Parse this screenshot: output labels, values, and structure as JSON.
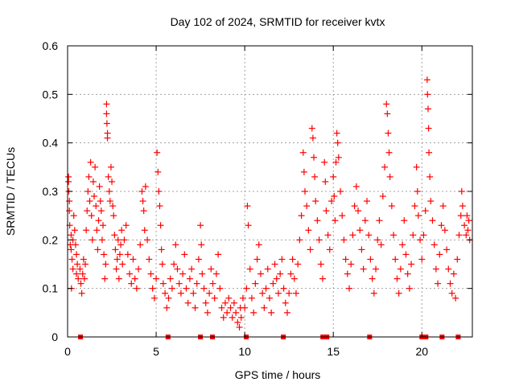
{
  "chart_data": {
    "type": "scatter",
    "title": "Day 102 of 2024, SRMTID for receiver kvtx",
    "xlabel": "GPS time / hours",
    "ylabel": "SRMTID / TECUs",
    "xlim": [
      0,
      22.85
    ],
    "ylim": [
      0,
      0.6
    ],
    "xticks": [
      0,
      5,
      10,
      15,
      20
    ],
    "xtick_labels": [
      "0",
      "5",
      "10",
      "15",
      "20"
    ],
    "yticks": [
      0,
      0.1,
      0.2,
      0.3,
      0.4,
      0.5,
      0.6
    ],
    "ytick_labels": [
      "0",
      "0.1",
      "0.2",
      "0.3",
      "0.4",
      "0.5",
      "0.6"
    ],
    "grid": true,
    "legend": "none",
    "marker": "plus",
    "color": "#ff0000",
    "series": [
      {
        "name": "SRMTID",
        "points": [
          [
            0.05,
            0.33
          ],
          [
            0.05,
            0.32
          ],
          [
            0.07,
            0.3
          ],
          [
            0.1,
            0.28
          ],
          [
            0.1,
            0.26
          ],
          [
            0.12,
            0.23
          ],
          [
            0.15,
            0.19
          ],
          [
            0.2,
            0.21
          ],
          [
            0.2,
            0.18
          ],
          [
            0.22,
            0.1
          ],
          [
            0.25,
            0.16
          ],
          [
            0.3,
            0.14
          ],
          [
            0.3,
            0.2
          ],
          [
            0.35,
            0.25
          ],
          [
            0.4,
            0.22
          ],
          [
            0.45,
            0.19
          ],
          [
            0.5,
            0.17
          ],
          [
            0.5,
            0.13
          ],
          [
            0.55,
            0.15
          ],
          [
            0.6,
            0.12
          ],
          [
            0.7,
            0.14
          ],
          [
            0.75,
            0.11
          ],
          [
            0.8,
            0.09
          ],
          [
            0.85,
            0.13
          ],
          [
            0.9,
            0.16
          ],
          [
            0.95,
            0.12
          ],
          [
            1.0,
            0.15
          ],
          [
            1.05,
            0.22
          ],
          [
            1.1,
            0.26
          ],
          [
            1.15,
            0.3
          ],
          [
            1.2,
            0.33
          ],
          [
            1.25,
            0.28
          ],
          [
            1.3,
            0.36
          ],
          [
            1.35,
            0.25
          ],
          [
            1.4,
            0.2
          ],
          [
            1.45,
            0.32
          ],
          [
            1.5,
            0.29
          ],
          [
            1.55,
            0.35
          ],
          [
            1.6,
            0.27
          ],
          [
            1.65,
            0.22
          ],
          [
            1.7,
            0.18
          ],
          [
            1.75,
            0.24
          ],
          [
            1.8,
            0.31
          ],
          [
            1.85,
            0.28
          ],
          [
            1.9,
            0.26
          ],
          [
            1.95,
            0.2
          ],
          [
            2.0,
            0.23
          ],
          [
            2.05,
            0.17
          ],
          [
            2.1,
            0.12
          ],
          [
            2.15,
            0.15
          ],
          [
            2.2,
            0.48
          ],
          [
            2.2,
            0.46
          ],
          [
            2.22,
            0.44
          ],
          [
            2.25,
            0.42
          ],
          [
            2.25,
            0.41
          ],
          [
            2.3,
            0.33
          ],
          [
            2.35,
            0.3
          ],
          [
            2.4,
            0.28
          ],
          [
            2.45,
            0.35
          ],
          [
            2.5,
            0.32
          ],
          [
            2.55,
            0.27
          ],
          [
            2.6,
            0.25
          ],
          [
            2.65,
            0.21
          ],
          [
            2.7,
            0.18
          ],
          [
            2.75,
            0.14
          ],
          [
            2.8,
            0.16
          ],
          [
            2.85,
            0.2
          ],
          [
            2.9,
            0.12
          ],
          [
            2.95,
            0.17
          ],
          [
            3.0,
            0.19
          ],
          [
            3.05,
            0.22
          ],
          [
            3.1,
            0.15
          ],
          [
            3.2,
            0.2
          ],
          [
            3.3,
            0.23
          ],
          [
            3.4,
            0.17
          ],
          [
            3.5,
            0.13
          ],
          [
            3.6,
            0.11
          ],
          [
            3.7,
            0.16
          ],
          [
            3.8,
            0.12
          ],
          [
            3.9,
            0.1
          ],
          [
            4.0,
            0.14
          ],
          [
            4.1,
            0.19
          ],
          [
            4.2,
            0.3
          ],
          [
            4.25,
            0.28
          ],
          [
            4.3,
            0.26
          ],
          [
            4.35,
            0.22
          ],
          [
            4.4,
            0.31
          ],
          [
            4.5,
            0.2
          ],
          [
            4.6,
            0.16
          ],
          [
            4.7,
            0.13
          ],
          [
            4.8,
            0.1
          ],
          [
            4.9,
            0.08
          ],
          [
            5.0,
            0.12
          ],
          [
            5.05,
            0.38
          ],
          [
            5.1,
            0.34
          ],
          [
            5.15,
            0.3
          ],
          [
            5.2,
            0.27
          ],
          [
            5.25,
            0.23
          ],
          [
            5.3,
            0.18
          ],
          [
            5.35,
            0.15
          ],
          [
            5.4,
            0.11
          ],
          [
            5.5,
            0.09
          ],
          [
            5.6,
            0.06
          ],
          [
            5.7,
            0.08
          ],
          [
            5.8,
            0.12
          ],
          [
            5.9,
            0.1
          ],
          [
            6.0,
            0.15
          ],
          [
            6.1,
            0.19
          ],
          [
            6.2,
            0.14
          ],
          [
            6.3,
            0.11
          ],
          [
            6.4,
            0.09
          ],
          [
            6.5,
            0.13
          ],
          [
            6.6,
            0.17
          ],
          [
            6.7,
            0.1
          ],
          [
            6.8,
            0.07
          ],
          [
            6.9,
            0.12
          ],
          [
            7.0,
            0.14
          ],
          [
            7.1,
            0.09
          ],
          [
            7.2,
            0.06
          ],
          [
            7.3,
            0.11
          ],
          [
            7.4,
            0.16
          ],
          [
            7.5,
            0.23
          ],
          [
            7.55,
            0.19
          ],
          [
            7.6,
            0.13
          ],
          [
            7.7,
            0.1
          ],
          [
            7.8,
            0.07
          ],
          [
            7.9,
            0.05
          ],
          [
            8.0,
            0.09
          ],
          [
            8.1,
            0.14
          ],
          [
            8.2,
            0.11
          ],
          [
            8.3,
            0.08
          ],
          [
            8.4,
            0.13
          ],
          [
            8.5,
            0.17
          ],
          [
            8.6,
            0.1
          ],
          [
            8.7,
            0.06
          ],
          [
            8.8,
            0.04
          ],
          [
            8.9,
            0.07
          ],
          [
            9.0,
            0.05
          ],
          [
            9.1,
            0.08
          ],
          [
            9.2,
            0.06
          ],
          [
            9.3,
            0.04
          ],
          [
            9.4,
            0.07
          ],
          [
            9.5,
            0.05
          ],
          [
            9.6,
            0.03
          ],
          [
            9.7,
            0.02
          ],
          [
            9.75,
            0.06
          ],
          [
            9.8,
            0.04
          ],
          [
            9.9,
            0.08
          ],
          [
            10.0,
            0.06
          ],
          [
            10.1,
            0.1
          ],
          [
            10.15,
            0.27
          ],
          [
            10.2,
            0.23
          ],
          [
            10.3,
            0.14
          ],
          [
            10.4,
            0.08
          ],
          [
            10.5,
            0.05
          ],
          [
            10.6,
            0.11
          ],
          [
            10.7,
            0.16
          ],
          [
            10.8,
            0.19
          ],
          [
            10.9,
            0.13
          ],
          [
            11.0,
            0.09
          ],
          [
            11.1,
            0.06
          ],
          [
            11.2,
            0.1
          ],
          [
            11.3,
            0.14
          ],
          [
            11.4,
            0.08
          ],
          [
            11.5,
            0.05
          ],
          [
            11.6,
            0.11
          ],
          [
            11.7,
            0.15
          ],
          [
            11.8,
            0.12
          ],
          [
            11.9,
            0.09
          ],
          [
            12.0,
            0.13
          ],
          [
            12.1,
            0.16
          ],
          [
            12.2,
            0.1
          ],
          [
            12.3,
            0.07
          ],
          [
            12.4,
            0.05
          ],
          [
            12.5,
            0.09
          ],
          [
            12.6,
            0.13
          ],
          [
            12.7,
            0.16
          ],
          [
            12.8,
            0.12
          ],
          [
            12.9,
            0.09
          ],
          [
            13.0,
            0.15
          ],
          [
            13.1,
            0.2
          ],
          [
            13.2,
            0.25
          ],
          [
            13.3,
            0.38
          ],
          [
            13.35,
            0.34
          ],
          [
            13.4,
            0.3
          ],
          [
            13.5,
            0.27
          ],
          [
            13.6,
            0.22
          ],
          [
            13.7,
            0.18
          ],
          [
            13.8,
            0.43
          ],
          [
            13.85,
            0.41
          ],
          [
            13.9,
            0.37
          ],
          [
            13.95,
            0.33
          ],
          [
            14.0,
            0.28
          ],
          [
            14.1,
            0.24
          ],
          [
            14.2,
            0.2
          ],
          [
            14.3,
            0.15
          ],
          [
            14.4,
            0.12
          ],
          [
            14.5,
            0.36
          ],
          [
            14.55,
            0.32
          ],
          [
            14.6,
            0.26
          ],
          [
            14.7,
            0.21
          ],
          [
            14.8,
            0.18
          ],
          [
            14.9,
            0.28
          ],
          [
            15.0,
            0.33
          ],
          [
            15.05,
            0.29
          ],
          [
            15.1,
            0.24
          ],
          [
            15.15,
            0.36
          ],
          [
            15.2,
            0.42
          ],
          [
            15.25,
            0.4
          ],
          [
            15.3,
            0.37
          ],
          [
            15.4,
            0.3
          ],
          [
            15.5,
            0.25
          ],
          [
            15.6,
            0.2
          ],
          [
            15.7,
            0.16
          ],
          [
            15.8,
            0.13
          ],
          [
            15.9,
            0.1
          ],
          [
            16.0,
            0.15
          ],
          [
            16.1,
            0.21
          ],
          [
            16.2,
            0.27
          ],
          [
            16.3,
            0.31
          ],
          [
            16.4,
            0.26
          ],
          [
            16.5,
            0.22
          ],
          [
            16.6,
            0.18
          ],
          [
            16.7,
            0.14
          ],
          [
            16.8,
            0.24
          ],
          [
            16.9,
            0.28
          ],
          [
            17.0,
            0.21
          ],
          [
            17.1,
            0.16
          ],
          [
            17.2,
            0.12
          ],
          [
            17.3,
            0.09
          ],
          [
            17.4,
            0.14
          ],
          [
            17.5,
            0.2
          ],
          [
            17.6,
            0.24
          ],
          [
            17.7,
            0.19
          ],
          [
            17.8,
            0.29
          ],
          [
            17.9,
            0.35
          ],
          [
            18.0,
            0.48
          ],
          [
            18.05,
            0.46
          ],
          [
            18.1,
            0.42
          ],
          [
            18.15,
            0.38
          ],
          [
            18.2,
            0.33
          ],
          [
            18.3,
            0.27
          ],
          [
            18.4,
            0.21
          ],
          [
            18.5,
            0.16
          ],
          [
            18.6,
            0.12
          ],
          [
            18.7,
            0.09
          ],
          [
            18.8,
            0.14
          ],
          [
            18.9,
            0.19
          ],
          [
            19.0,
            0.24
          ],
          [
            19.1,
            0.17
          ],
          [
            19.2,
            0.13
          ],
          [
            19.3,
            0.1
          ],
          [
            19.4,
            0.15
          ],
          [
            19.5,
            0.21
          ],
          [
            19.6,
            0.27
          ],
          [
            19.7,
            0.35
          ],
          [
            19.75,
            0.3
          ],
          [
            19.8,
            0.25
          ],
          [
            19.9,
            0.2
          ],
          [
            20.0,
            0.16
          ],
          [
            20.1,
            0.21
          ],
          [
            20.2,
            0.26
          ],
          [
            20.3,
            0.53
          ],
          [
            20.32,
            0.5
          ],
          [
            20.35,
            0.47
          ],
          [
            20.38,
            0.43
          ],
          [
            20.4,
            0.38
          ],
          [
            20.45,
            0.33
          ],
          [
            20.5,
            0.28
          ],
          [
            20.6,
            0.24
          ],
          [
            20.7,
            0.19
          ],
          [
            20.8,
            0.14
          ],
          [
            20.9,
            0.11
          ],
          [
            21.0,
            0.17
          ],
          [
            21.1,
            0.23
          ],
          [
            21.2,
            0.27
          ],
          [
            21.3,
            0.22
          ],
          [
            21.4,
            0.18
          ],
          [
            21.5,
            0.14
          ],
          [
            21.6,
            0.11
          ],
          [
            21.7,
            0.09
          ],
          [
            21.8,
            0.13
          ],
          [
            21.9,
            0.08
          ],
          [
            22.0,
            0.16
          ],
          [
            22.1,
            0.21
          ],
          [
            22.2,
            0.25
          ],
          [
            22.25,
            0.3
          ],
          [
            22.3,
            0.27
          ],
          [
            22.4,
            0.23
          ],
          [
            22.5,
            0.21
          ],
          [
            22.55,
            0.25
          ],
          [
            22.6,
            0.22
          ],
          [
            22.65,
            0.24
          ],
          [
            22.7,
            0.2
          ]
        ]
      },
      {
        "name": "zero-markers",
        "points": [
          [
            0.73,
            0
          ],
          [
            5.67,
            0
          ],
          [
            7.5,
            0
          ],
          [
            8.18,
            0
          ],
          [
            10.09,
            0
          ],
          [
            12.18,
            0
          ],
          [
            14.41,
            0
          ],
          [
            14.64,
            0
          ],
          [
            17.05,
            0
          ],
          [
            20.0,
            0
          ],
          [
            20.23,
            0
          ],
          [
            21.14,
            0
          ],
          [
            22.05,
            0
          ]
        ]
      }
    ]
  }
}
